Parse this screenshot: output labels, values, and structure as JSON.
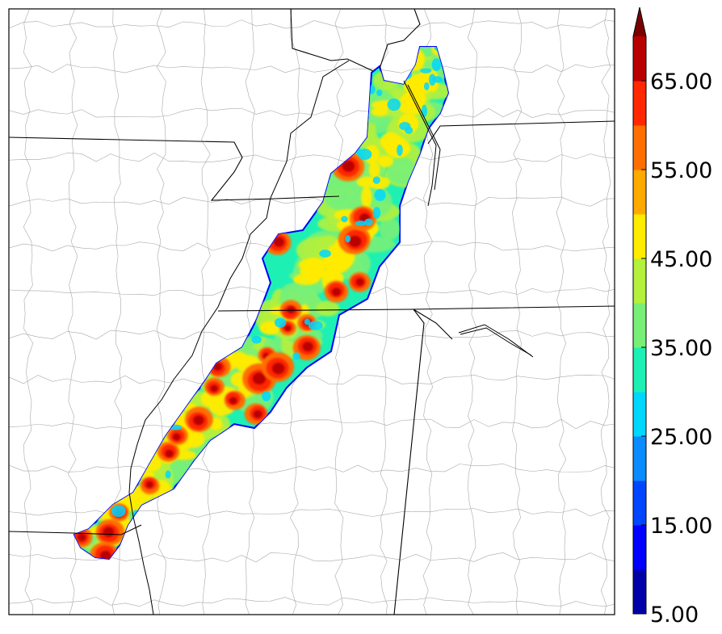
{
  "colorbar": {
    "ticks": [
      {
        "value": 5,
        "label": "5.00"
      },
      {
        "value": 15,
        "label": "15.00"
      },
      {
        "value": 25,
        "label": "25.00"
      },
      {
        "value": 35,
        "label": "35.00"
      },
      {
        "value": 45,
        "label": "45.00"
      },
      {
        "value": 55,
        "label": "55.00"
      },
      {
        "value": 65,
        "label": "65.00"
      }
    ],
    "levels": [
      5,
      10,
      15,
      20,
      25,
      30,
      35,
      40,
      45,
      50,
      55,
      60,
      65,
      70
    ],
    "colors": [
      "#0000a8",
      "#0000ff",
      "#0046ff",
      "#0a8cff",
      "#00d7ff",
      "#1ef0b4",
      "#78f078",
      "#b4f03c",
      "#ffeb00",
      "#ffaa00",
      "#ff6e00",
      "#ff2800",
      "#b90000"
    ],
    "extend_color": "#7a0000",
    "extend": "max"
  },
  "map": {
    "background": "#ffffff",
    "state_border_color": "#000000",
    "county_border_color": "#a0a0a0",
    "swath": "accumulated field swath oriented southwest to northeast"
  }
}
